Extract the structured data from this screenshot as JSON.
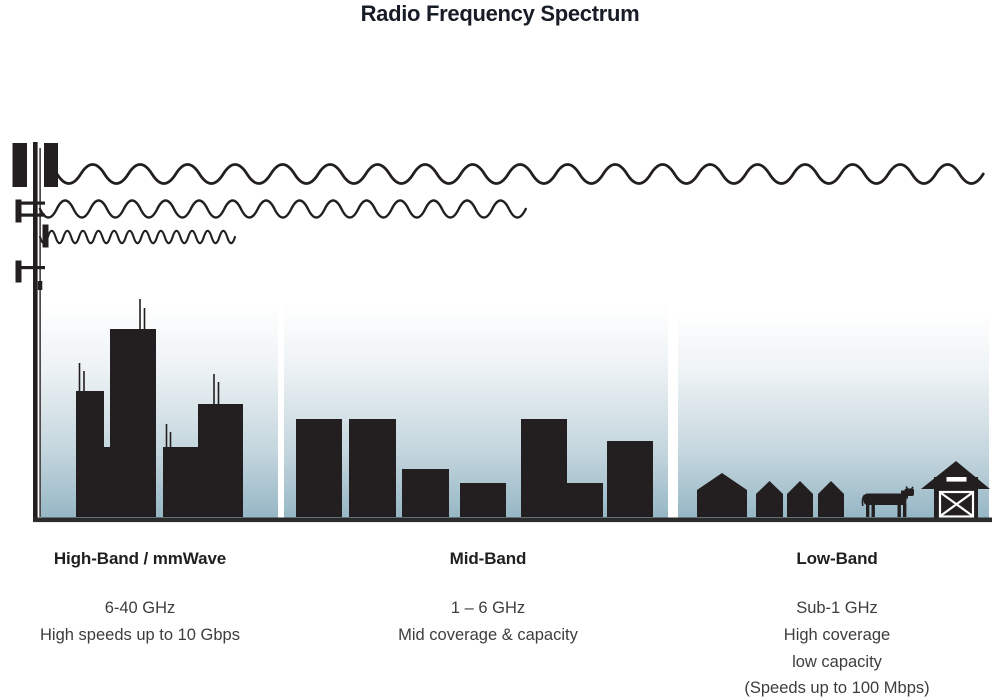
{
  "title": "Radio Frequency Spectrum",
  "colors": {
    "ink": "#231f20",
    "ground": "#2b2b2b",
    "sky_top": "#ffffff",
    "sky_mid": "#eef3f5",
    "sky_low": "#c3d5dd",
    "sky_bottom": "#96b7c5",
    "title_text": "#171c26",
    "heading_text": "#1f1f1f",
    "body_text": "#3d3d3d"
  },
  "bands": [
    {
      "id": "high-band",
      "heading": "High-Band / mmWave",
      "lines": [
        "6-40 GHz",
        "High speeds up to 10 Gbps"
      ],
      "scene": "city-skyscrapers",
      "wave": "shortest-wavelength-shortest-reach"
    },
    {
      "id": "mid-band",
      "heading": "Mid-Band",
      "lines": [
        "1 – 6 GHz",
        "Mid coverage & capacity"
      ],
      "scene": "town-buildings",
      "wave": "medium-wavelength-medium-reach"
    },
    {
      "id": "low-band",
      "heading": "Low-Band",
      "lines": [
        "Sub-1 GHz",
        "High coverage",
        "low capacity",
        "(Speeds up to 100 Mbps)"
      ],
      "scene": "rural-houses-barn-cow",
      "wave": "longest-wavelength-longest-reach"
    }
  ]
}
